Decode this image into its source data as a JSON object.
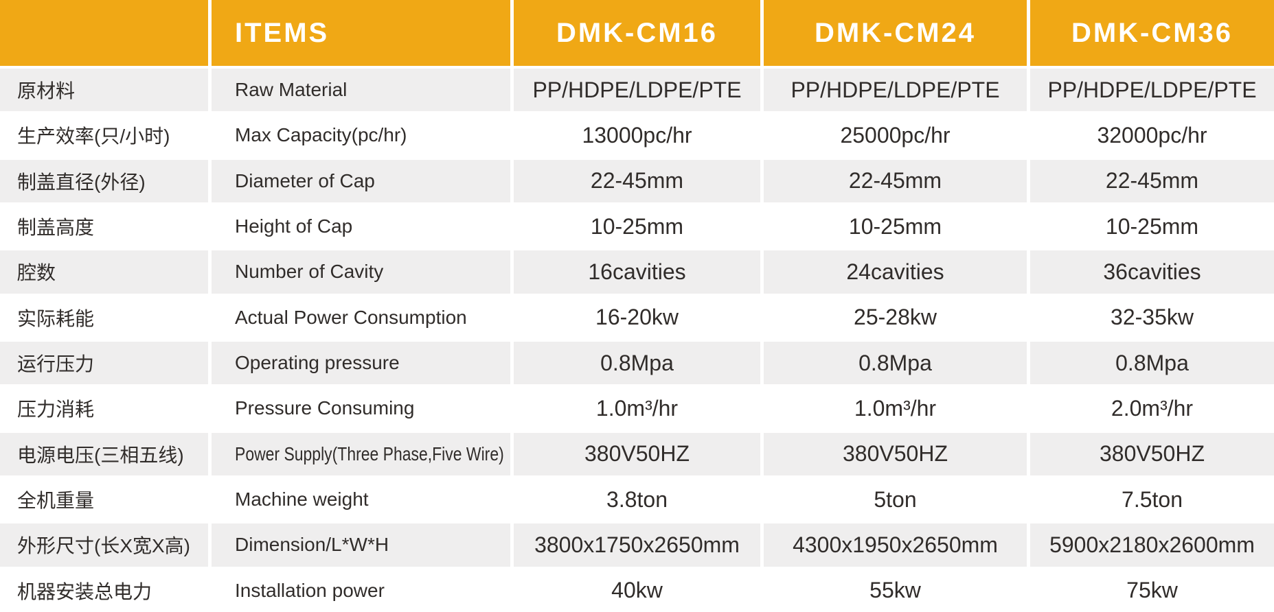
{
  "colors": {
    "accent": "#F0A815",
    "header_text": "#FFFFFF",
    "row_alt": "#EFEEEE",
    "text": "#302C2A",
    "background": "#FFFFFF"
  },
  "header": {
    "items_label": "ITEMS",
    "models": [
      "DMK-CM16",
      "DMK-CM24",
      "DMK-CM36"
    ]
  },
  "rows": [
    {
      "cn": "原材料",
      "en": "Raw Material",
      "values": [
        "PP/HDPE/LDPE/PTE",
        "PP/HDPE/LDPE/PTE",
        "PP/HDPE/LDPE/PTE"
      ]
    },
    {
      "cn": "生产效率(只/小时)",
      "en": "Max Capacity(pc/hr)",
      "values": [
        "13000pc/hr",
        "25000pc/hr",
        "32000pc/hr"
      ]
    },
    {
      "cn": "制盖直径(外径)",
      "en": "Diameter of Cap",
      "values": [
        "22-45mm",
        "22-45mm",
        "22-45mm"
      ]
    },
    {
      "cn": "制盖高度",
      "en": "Height of Cap",
      "values": [
        "10-25mm",
        "10-25mm",
        "10-25mm"
      ]
    },
    {
      "cn": "腔数",
      "en": "Number of Cavity",
      "values": [
        "16cavities",
        "24cavities",
        "36cavities"
      ]
    },
    {
      "cn": "实际耗能",
      "en": "Actual Power Consumption",
      "values": [
        "16-20kw",
        "25-28kw",
        "32-35kw"
      ]
    },
    {
      "cn": "运行压力",
      "en": "Operating pressure",
      "values": [
        "0.8Mpa",
        "0.8Mpa",
        "0.8Mpa"
      ]
    },
    {
      "cn": "压力消耗",
      "en": "Pressure Consuming",
      "values": [
        "1.0m³/hr",
        "1.0m³/hr",
        "2.0m³/hr"
      ]
    },
    {
      "cn": "电源电压(三相五线)",
      "en": "Power Supply(Three Phase,Five Wire)",
      "values": [
        "380V50HZ",
        "380V50HZ",
        "380V50HZ"
      ]
    },
    {
      "cn": "全机重量",
      "en": "Machine weight",
      "values": [
        "3.8ton",
        "5ton",
        "7.5ton"
      ]
    },
    {
      "cn": "外形尺寸(长X宽X高)",
      "en": "Dimension/L*W*H",
      "values": [
        "3800x1750x2650mm",
        "4300x1950x2650mm",
        "5900x2180x2600mm"
      ]
    },
    {
      "cn": "机器安装总电力",
      "en": "Installation power",
      "values": [
        "40kw",
        "55kw",
        "75kw"
      ]
    }
  ]
}
